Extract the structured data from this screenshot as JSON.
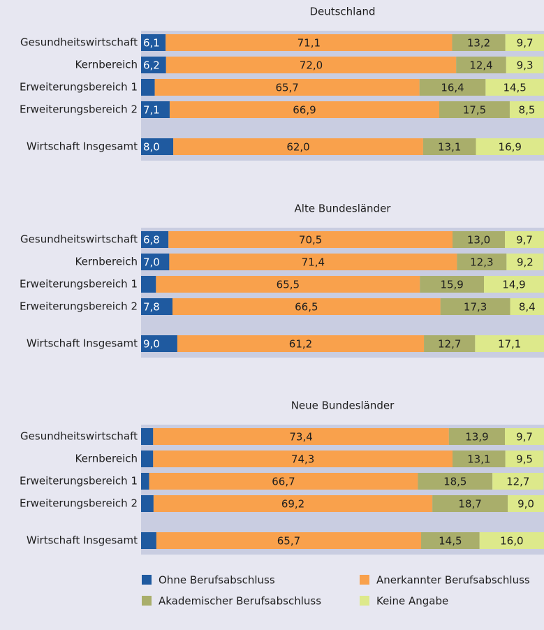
{
  "chart_data": [
    {
      "type": "stacked_barh",
      "title": "Deutschland",
      "categories": [
        "Gesundheitswirtschaft",
        "Kernbereich",
        "Erweiterungsbereich 1",
        "Erweiterungsbereich 2",
        "Wirtschaft Insgesamt"
      ],
      "xlim": [
        0,
        100
      ],
      "series": [
        {
          "name": "Ohne Berufsabschluss",
          "color": "#1f5aa0",
          "values": [
            6.1,
            6.2,
            3.4,
            7.1,
            8.0
          ],
          "value_labels": [
            "6,1",
            "6,2",
            "3,4",
            "7,1",
            "8,0"
          ]
        },
        {
          "name": "Anerkannter Berufsabschluss",
          "color": "#f9a14c",
          "values": [
            71.1,
            72.0,
            65.7,
            66.9,
            62.0
          ],
          "value_labels": [
            "71,1",
            "72,0",
            "65,7",
            "66,9",
            "62,0"
          ]
        },
        {
          "name": "Akademischer Berufsabschluss",
          "color": "#a9ae6b",
          "values": [
            13.2,
            12.4,
            16.4,
            17.5,
            13.1
          ],
          "value_labels": [
            "13,2",
            "12,4",
            "16,4",
            "17,5",
            "13,1"
          ]
        },
        {
          "name": "Keine Angabe",
          "color": "#dde98b",
          "values": [
            9.7,
            9.3,
            14.5,
            8.5,
            16.9
          ],
          "value_labels": [
            "9,7",
            "9,3",
            "14,5",
            "8,5",
            "16,9"
          ]
        }
      ]
    },
    {
      "type": "stacked_barh",
      "title": "Alte Bundesländer",
      "categories": [
        "Gesundheitswirtschaft",
        "Kernbereich",
        "Erweiterungsbereich 1",
        "Erweiterungsbereich 2",
        "Wirtschaft Insgesamt"
      ],
      "xlim": [
        0,
        100
      ],
      "series": [
        {
          "values": [
            6.8,
            7.0,
            3.7,
            7.8,
            9.0
          ],
          "value_labels": [
            "6,8",
            "7,0",
            "3,7",
            "7,8",
            "9,0"
          ]
        },
        {
          "values": [
            70.5,
            71.4,
            65.5,
            66.5,
            61.2
          ],
          "value_labels": [
            "70,5",
            "71,4",
            "65,5",
            "66,5",
            "61,2"
          ]
        },
        {
          "values": [
            13.0,
            12.3,
            15.9,
            17.3,
            12.7
          ],
          "value_labels": [
            "13,0",
            "12,3",
            "15,9",
            "17,3",
            "12,7"
          ]
        },
        {
          "values": [
            9.7,
            9.2,
            14.9,
            8.4,
            17.1
          ],
          "value_labels": [
            "9,7",
            "9,2",
            "14,9",
            "8,4",
            "17,1"
          ]
        }
      ]
    },
    {
      "type": "stacked_barh",
      "title": "Neue Bundesländer",
      "categories": [
        "Gesundheitswirtschaft",
        "Kernbereich",
        "Erweiterungsbereich 1",
        "Erweiterungsbereich 2",
        "Wirtschaft Insgesamt"
      ],
      "xlim": [
        0,
        100
      ],
      "series": [
        {
          "values": [
            3.0,
            3.0,
            2.0,
            3.1,
            3.8
          ],
          "value_labels": [
            "3,0",
            "3,0",
            "2,0",
            "3,1",
            "3,8"
          ]
        },
        {
          "values": [
            73.4,
            74.3,
            66.7,
            69.2,
            65.7
          ],
          "value_labels": [
            "73,4",
            "74,3",
            "66,7",
            "69,2",
            "65,7"
          ]
        },
        {
          "values": [
            13.9,
            13.1,
            18.5,
            18.7,
            14.5
          ],
          "value_labels": [
            "13,9",
            "13,1",
            "18,5",
            "18,7",
            "14,5"
          ]
        },
        {
          "values": [
            9.7,
            9.5,
            12.7,
            9.0,
            16.0
          ],
          "value_labels": [
            "9,7",
            "9,5",
            "12,7",
            "9,0",
            "16,0"
          ]
        }
      ]
    }
  ]
}
